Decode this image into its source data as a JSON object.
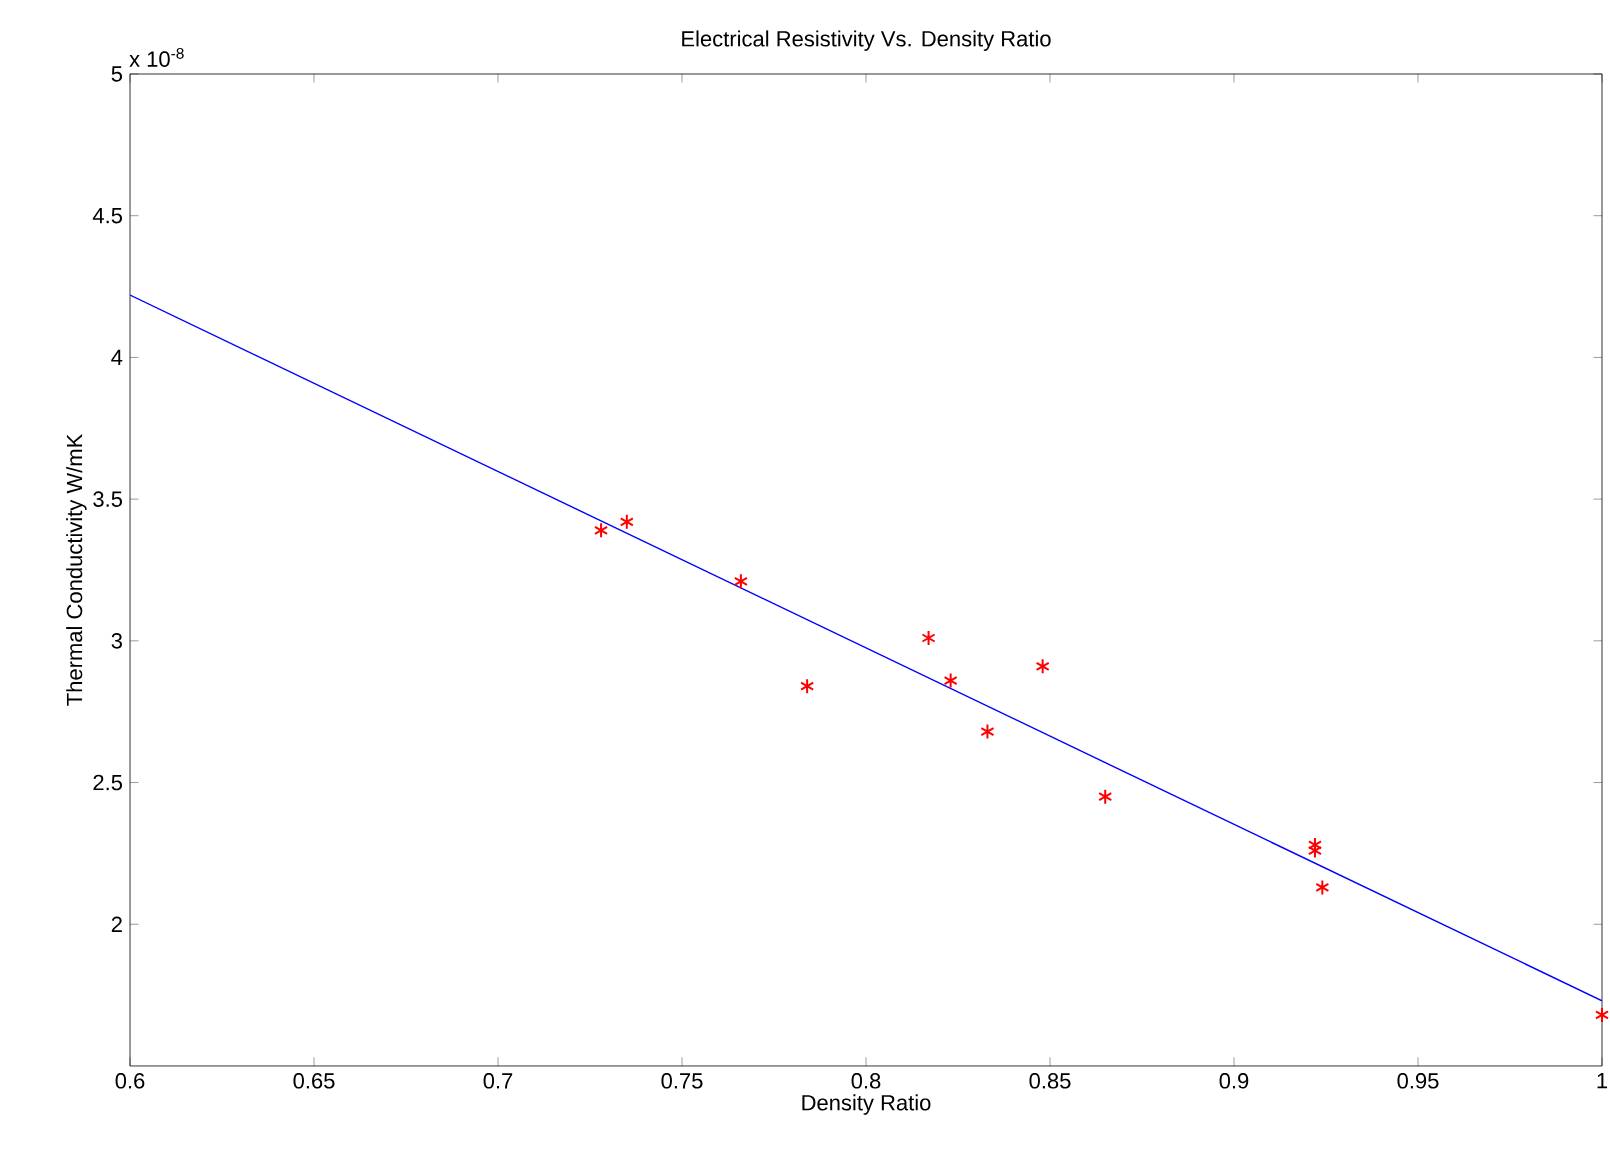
{
  "chart_data": {
    "type": "scatter",
    "title": "Electrical Resistivity Vs. Density Ratio",
    "xlabel": "Density Ratio",
    "ylabel": "Thermal Conductivity W/mK",
    "annotations": [
      "x 10$^{-8}$"
    ],
    "xlim": [
      0.6,
      1
    ],
    "xticks": [
      0.6,
      0.65,
      0.7,
      0.75,
      0.8,
      0.85,
      0.9,
      0.95,
      1
    ],
    "ylim": [
      1.5,
      5
    ],
    "yticks": [
      2,
      2.5,
      3,
      3.5,
      4,
      4.5,
      5
    ],
    "series": [
      {
        "color": "#ff0000",
        "marker": "cross",
        "x": [
          0.728,
          0.735,
          0.766,
          0.784,
          0.817,
          0.823,
          0.833,
          0.848,
          0.865,
          0.922,
          0.922,
          0.924,
          1.0
        ],
        "values": [
          3.39,
          3.42,
          3.21,
          2.84,
          3.01,
          2.86,
          2.68,
          2.91,
          2.45,
          2.28,
          2.26,
          2.13,
          1.68
        ]
      },
      {
        "type": "line",
        "color": "#0000ff",
        "marker": "none",
        "line_style": "solid",
        "x": [
          0.6,
          1.0
        ],
        "values": [
          4.22,
          1.73
        ]
      }
    ]
  }
}
